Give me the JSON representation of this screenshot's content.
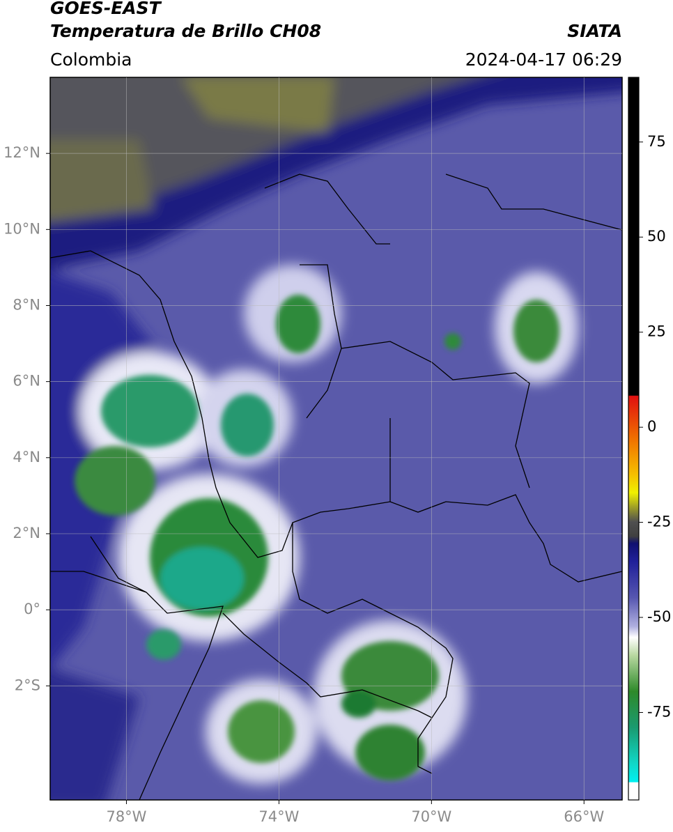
{
  "header": {
    "title": "GOES-EAST",
    "subtitle": "Temperatura de Brillo CH08",
    "source": "SIATA",
    "region": "Colombia",
    "datetime": "2024-04-17 06:29"
  },
  "map": {
    "lon_lim": [
      -80,
      -65
    ],
    "lat_lim": [
      -5,
      14
    ],
    "lon_ticks": [
      {
        "value": -78,
        "label": "78°W"
      },
      {
        "value": -74,
        "label": "74°W"
      },
      {
        "value": -70,
        "label": "70°W"
      },
      {
        "value": -66,
        "label": "66°W"
      }
    ],
    "lat_ticks": [
      {
        "value": 12,
        "label": "12°N"
      },
      {
        "value": 10,
        "label": "10°N"
      },
      {
        "value": 8,
        "label": "8°N"
      },
      {
        "value": 6,
        "label": "6°N"
      },
      {
        "value": 4,
        "label": "4°N"
      },
      {
        "value": 2,
        "label": "2°N"
      },
      {
        "value": 0,
        "label": "0°"
      },
      {
        "value": -2,
        "label": "2°S"
      }
    ]
  },
  "colorbar": {
    "lim": [
      -98,
      92
    ],
    "ticks": [
      75,
      50,
      25,
      0,
      -25,
      -50,
      -75
    ]
  }
}
